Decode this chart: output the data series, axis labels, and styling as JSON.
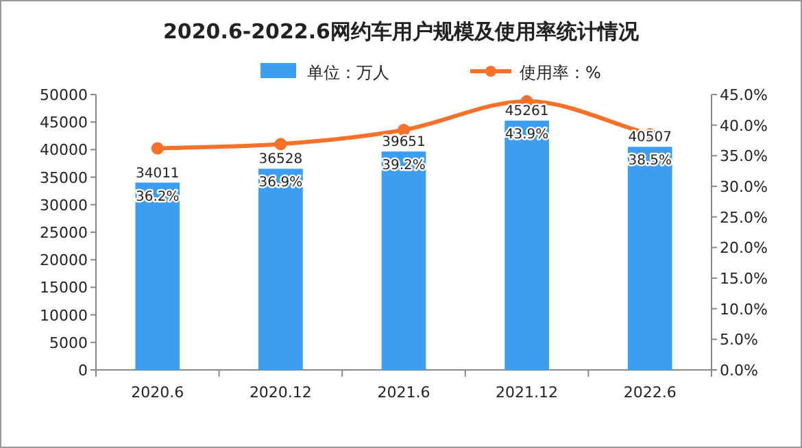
{
  "chart_data": {
    "type": "bar",
    "title": "2020.6-2022.6网约车用户规模及使用率统计情况",
    "categories": [
      "2020.6",
      "2020.12",
      "2021.6",
      "2021.12",
      "2022.6"
    ],
    "series": [
      {
        "name": "单位：万人",
        "color": "#3d9df0",
        "values": [
          34011,
          36528,
          39651,
          45261,
          40507
        ],
        "value_labels": [
          "34011",
          "36528",
          "39651",
          "45261",
          "40507"
        ]
      },
      {
        "name": "使用率：%",
        "type": "line",
        "axis": "y2",
        "color": "#f7712a",
        "marker": "circle",
        "values": [
          36.2,
          36.9,
          39.2,
          43.9,
          38.5
        ],
        "value_labels": [
          "36.2%",
          "36.9%",
          "39.2%",
          "43.9%",
          "38.5%"
        ]
      }
    ],
    "ylim": [
      0,
      50000
    ],
    "yticks": [
      0,
      5000,
      10000,
      15000,
      20000,
      25000,
      30000,
      35000,
      40000,
      45000,
      50000
    ],
    "y2lim": [
      0,
      45
    ],
    "y2ticks": [
      {
        "value": 0,
        "label": "0.0%"
      },
      {
        "value": 5,
        "label": "5.0%"
      },
      {
        "value": 10,
        "label": "10.0%"
      },
      {
        "value": 15,
        "label": "15.0%"
      },
      {
        "value": 20,
        "label": "20.0%"
      },
      {
        "value": 25,
        "label": "25.0%"
      },
      {
        "value": 30,
        "label": "30.0%"
      },
      {
        "value": 35,
        "label": "35.0%"
      },
      {
        "value": 40,
        "label": "40.0%"
      },
      {
        "value": 45,
        "label": "45.0%"
      }
    ],
    "legend": "top",
    "grid": false
  }
}
